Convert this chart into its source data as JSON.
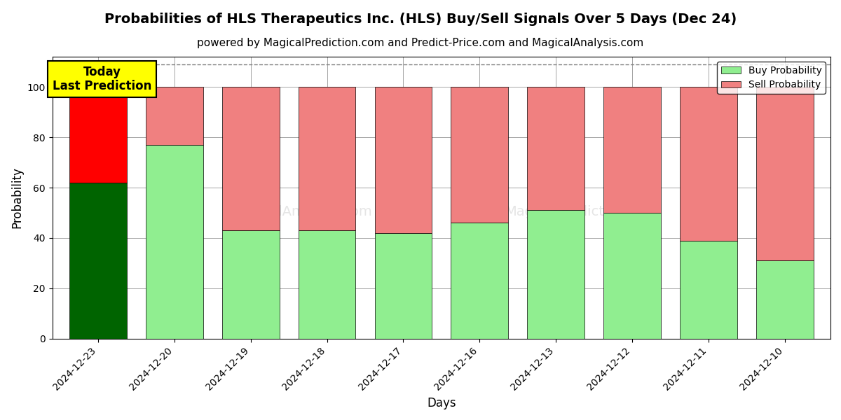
{
  "title": "Probabilities of HLS Therapeutics Inc. (HLS) Buy/Sell Signals Over 5 Days (Dec 24)",
  "subtitle": "powered by MagicalPrediction.com and Predict-Price.com and MagicalAnalysis.com",
  "xlabel": "Days",
  "ylabel": "Probability",
  "categories": [
    "2024-12-23",
    "2024-12-20",
    "2024-12-19",
    "2024-12-18",
    "2024-12-17",
    "2024-12-16",
    "2024-12-13",
    "2024-12-12",
    "2024-12-11",
    "2024-12-10"
  ],
  "buy_values": [
    62,
    77,
    43,
    43,
    42,
    46,
    51,
    50,
    39,
    31
  ],
  "sell_values": [
    38,
    23,
    57,
    57,
    58,
    54,
    49,
    50,
    61,
    69
  ],
  "buy_colors": [
    "#006400",
    "#90EE90",
    "#90EE90",
    "#90EE90",
    "#90EE90",
    "#90EE90",
    "#90EE90",
    "#90EE90",
    "#90EE90",
    "#90EE90"
  ],
  "sell_colors": [
    "#FF0000",
    "#F08080",
    "#F08080",
    "#F08080",
    "#F08080",
    "#F08080",
    "#F08080",
    "#F08080",
    "#F08080",
    "#F08080"
  ],
  "today_label_line1": "Today",
  "today_label_line2": "Last Prediction",
  "legend_buy": "Buy Probability",
  "legend_sell": "Sell Probability",
  "ylim": [
    0,
    112
  ],
  "yticks": [
    0,
    20,
    40,
    60,
    80,
    100
  ],
  "dashed_line_y": 109,
  "background_color": "#ffffff",
  "title_fontsize": 14,
  "subtitle_fontsize": 11,
  "annotation_fontsize": 12,
  "bar_width": 0.75
}
